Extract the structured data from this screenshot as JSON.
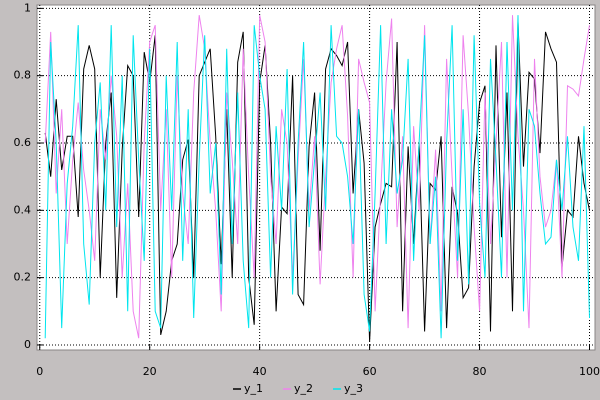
{
  "chart_data": {
    "type": "line",
    "x": [
      1,
      2,
      3,
      4,
      5,
      6,
      7,
      8,
      9,
      10,
      11,
      12,
      13,
      14,
      15,
      16,
      17,
      18,
      19,
      20,
      21,
      22,
      23,
      24,
      25,
      26,
      27,
      28,
      29,
      30,
      31,
      32,
      33,
      34,
      35,
      36,
      37,
      38,
      39,
      40,
      41,
      42,
      43,
      44,
      45,
      46,
      47,
      48,
      49,
      50,
      51,
      52,
      53,
      54,
      55,
      56,
      57,
      58,
      59,
      60,
      61,
      62,
      63,
      64,
      65,
      66,
      67,
      68,
      69,
      70,
      71,
      72,
      73,
      74,
      75,
      76,
      77,
      78,
      79,
      80,
      81,
      82,
      83,
      84,
      85,
      86,
      87,
      88,
      89,
      90,
      91,
      92,
      93,
      94,
      95,
      96,
      97,
      98,
      99,
      100
    ],
    "series": [
      {
        "name": "y_1",
        "color": "#000000",
        "values": [
          0.63,
          0.5,
          0.73,
          0.52,
          0.62,
          0.62,
          0.38,
          0.82,
          0.89,
          0.82,
          0.2,
          0.6,
          0.75,
          0.14,
          0.58,
          0.83,
          0.8,
          0.38,
          0.87,
          0.78,
          0.92,
          0.03,
          0.1,
          0.25,
          0.3,
          0.55,
          0.61,
          0.2,
          0.8,
          0.84,
          0.88,
          0.62,
          0.24,
          0.7,
          0.2,
          0.84,
          0.93,
          0.2,
          0.06,
          0.78,
          0.89,
          0.6,
          0.1,
          0.41,
          0.39,
          0.8,
          0.15,
          0.12,
          0.59,
          0.75,
          0.28,
          0.82,
          0.88,
          0.86,
          0.83,
          0.9,
          0.45,
          0.7,
          0.54,
          0.01,
          0.35,
          0.42,
          0.48,
          0.47,
          0.9,
          0.1,
          0.59,
          0.3,
          0.6,
          0.04,
          0.48,
          0.46,
          0.62,
          0.05,
          0.47,
          0.39,
          0.14,
          0.17,
          0.53,
          0.72,
          0.77,
          0.04,
          0.89,
          0.32,
          0.75,
          0.1,
          0.96,
          0.53,
          0.81,
          0.79,
          0.57,
          0.93,
          0.88,
          0.84,
          0.23,
          0.4,
          0.38,
          0.62,
          0.48,
          0.4
        ]
      },
      {
        "name": "y_2",
        "color": "#ee82ee",
        "values": [
          0.6,
          0.93,
          0.45,
          0.7,
          0.3,
          0.55,
          0.72,
          0.52,
          0.4,
          0.25,
          0.7,
          0.55,
          0.8,
          0.62,
          0.2,
          0.48,
          0.1,
          0.02,
          0.6,
          0.9,
          0.95,
          0.4,
          0.7,
          0.2,
          0.8,
          0.45,
          0.3,
          0.75,
          0.98,
          0.88,
          0.6,
          0.4,
          0.1,
          0.75,
          0.55,
          0.3,
          0.88,
          0.5,
          0.2,
          0.98,
          0.9,
          0.5,
          0.3,
          0.7,
          0.6,
          0.2,
          0.55,
          0.85,
          0.4,
          0.62,
          0.18,
          0.5,
          0.78,
          0.88,
          0.95,
          0.68,
          0.2,
          0.85,
          0.78,
          0.72,
          0.1,
          0.45,
          0.78,
          0.97,
          0.35,
          0.62,
          0.05,
          0.65,
          0.4,
          0.95,
          0.3,
          0.58,
          0.1,
          0.85,
          0.5,
          0.2,
          0.92,
          0.68,
          0.35,
          0.1,
          0.75,
          0.3,
          0.6,
          0.9,
          0.2,
          0.98,
          0.62,
          0.4,
          0.05,
          0.85,
          0.5,
          0.35,
          0.4,
          0.55,
          0.2,
          0.77,
          0.76,
          0.74,
          0.85,
          0.95
        ]
      },
      {
        "name": "y_3",
        "color": "#00e5ee",
        "values": [
          0.02,
          0.9,
          0.6,
          0.05,
          0.48,
          0.65,
          0.95,
          0.3,
          0.12,
          0.6,
          0.78,
          0.4,
          0.95,
          0.35,
          0.8,
          0.1,
          0.92,
          0.55,
          0.25,
          0.88,
          0.1,
          0.05,
          0.8,
          0.4,
          0.9,
          0.25,
          0.7,
          0.08,
          0.55,
          0.92,
          0.45,
          0.6,
          0.15,
          0.88,
          0.3,
          0.75,
          0.25,
          0.05,
          0.95,
          0.8,
          0.7,
          0.2,
          0.65,
          0.4,
          0.82,
          0.15,
          0.6,
          0.9,
          0.35,
          0.55,
          0.75,
          0.4,
          0.95,
          0.62,
          0.6,
          0.5,
          0.3,
          0.7,
          0.15,
          0.04,
          0.45,
          0.95,
          0.3,
          0.7,
          0.45,
          0.55,
          0.85,
          0.25,
          0.6,
          0.92,
          0.3,
          0.5,
          0.02,
          0.6,
          0.95,
          0.25,
          0.7,
          0.18,
          0.92,
          0.42,
          0.2,
          0.85,
          0.55,
          0.2,
          0.9,
          0.4,
          0.98,
          0.1,
          0.7,
          0.65,
          0.45,
          0.3,
          0.32,
          0.55,
          0.4,
          0.62,
          0.35,
          0.25,
          0.65,
          0.08
        ]
      }
    ],
    "xlim": [
      -0.5,
      101
    ],
    "xticks": [
      0,
      20,
      40,
      60,
      80,
      100
    ],
    "ylim": [
      -0.015,
      1.01
    ],
    "yticks": [
      0,
      0.2,
      0.4,
      0.6,
      0.8,
      1
    ],
    "grid": true,
    "legend": "bottom"
  }
}
